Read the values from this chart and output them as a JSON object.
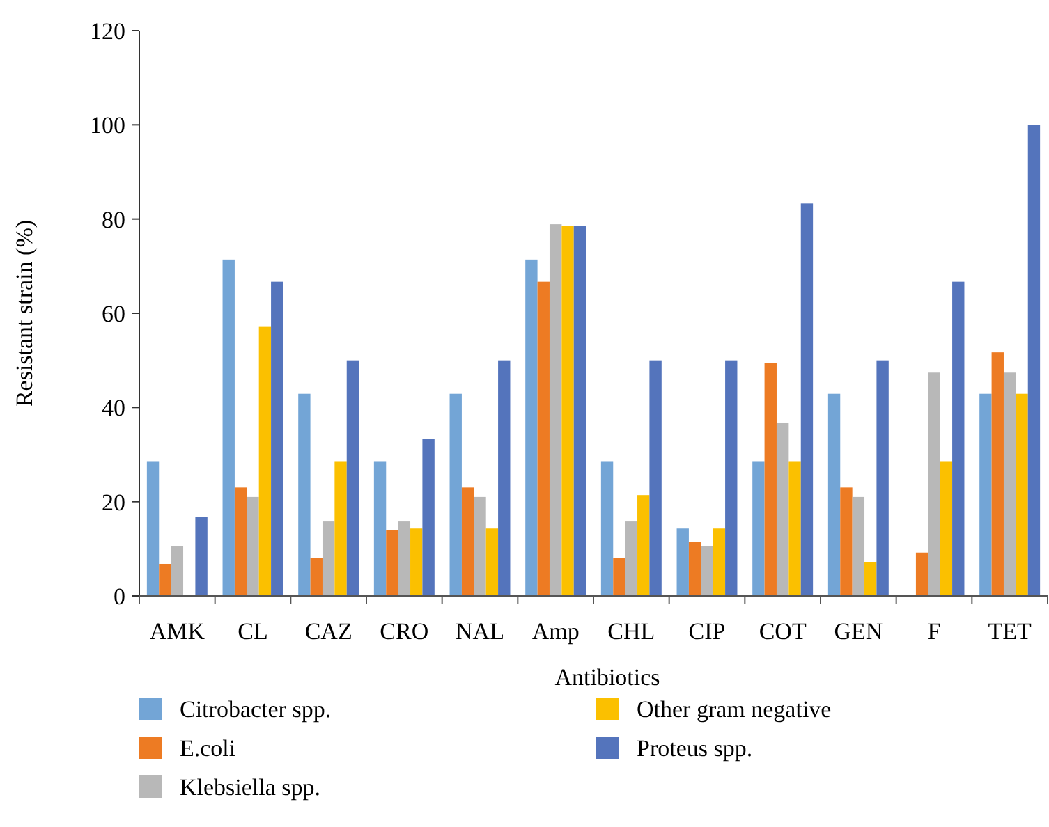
{
  "chart_data": {
    "type": "bar",
    "xlabel": "Antibiotics",
    "ylabel": "Resistant strain (%)",
    "categories": [
      "AMK",
      "CL",
      "CAZ",
      "CRO",
      "NAL",
      "Amp",
      "CHL",
      "CIP",
      "COT",
      "GEN",
      "F",
      "TET"
    ],
    "series": [
      {
        "name": "Citrobacter spp.",
        "color": "#73a5d6",
        "values": [
          28.6,
          71.4,
          42.9,
          28.6,
          42.9,
          71.4,
          28.6,
          14.3,
          28.6,
          42.9,
          0,
          42.9
        ]
      },
      {
        "name": "E.coli",
        "color": "#ed7b23",
        "values": [
          6.8,
          23,
          8,
          14,
          23,
          66.7,
          8,
          11.5,
          49.4,
          23,
          9.2,
          51.7
        ]
      },
      {
        "name": "Klebsiella spp.",
        "color": "#b8b8b8",
        "values": [
          10.5,
          21,
          15.8,
          15.8,
          21,
          78.9,
          15.8,
          10.5,
          36.8,
          21,
          47.4,
          47.4
        ]
      },
      {
        "name": "Other gram negative",
        "color": "#fbc000",
        "values": [
          0,
          57.1,
          28.6,
          14.3,
          14.3,
          78.6,
          21.4,
          14.3,
          28.6,
          7.1,
          28.6,
          42.9
        ]
      },
      {
        "name": "Proteus spp.",
        "color": "#5474bc",
        "values": [
          16.7,
          66.7,
          50,
          33.3,
          50,
          78.6,
          50,
          50,
          83.3,
          50,
          66.7,
          100
        ]
      }
    ],
    "ylim": [
      0,
      120
    ],
    "yticks": [
      0,
      20,
      40,
      60,
      80,
      100,
      120
    ],
    "grid": false,
    "legend": "bottom"
  }
}
